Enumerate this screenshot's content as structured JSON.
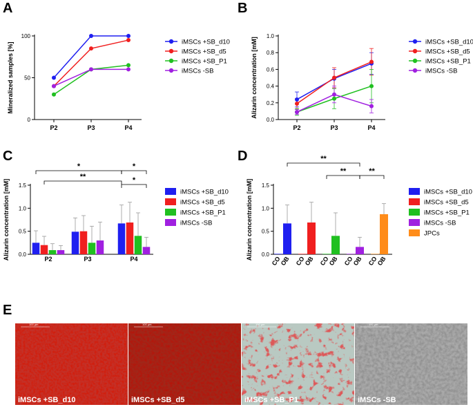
{
  "colors": {
    "blue": "#1f1ff0",
    "red": "#f01f1f",
    "green": "#20c020",
    "purple": "#a020e0",
    "orange": "#ff8c1a"
  },
  "panel_letters": {
    "a": "A",
    "b": "B",
    "c": "C",
    "d": "D",
    "e": "E"
  },
  "chart_data": [
    {
      "id": "A",
      "type": "line",
      "ylabel": "Mineralized samples [%]",
      "categories": [
        "P2",
        "P3",
        "P4"
      ],
      "ylim": [
        0,
        100
      ],
      "yticks": [
        "0",
        "50",
        "100"
      ],
      "series": [
        {
          "name": "iMSCs +SB_d10",
          "color": "blue",
          "values": [
            50,
            100,
            100
          ]
        },
        {
          "name": "iMSCs +SB_d5",
          "color": "red",
          "values": [
            40,
            85,
            95
          ]
        },
        {
          "name": "iMSCs +SB_P1",
          "color": "green",
          "values": [
            30,
            60,
            65
          ]
        },
        {
          "name": "iMSCs -SB",
          "color": "purple",
          "values": [
            40,
            60,
            60
          ]
        }
      ]
    },
    {
      "id": "B",
      "type": "line",
      "ylabel": "Alizarin concentration [mM]",
      "categories": [
        "P2",
        "P3",
        "P4"
      ],
      "ylim": [
        0,
        1.0
      ],
      "yticks": [
        "0.0",
        "0.2",
        "0.4",
        "0.6",
        "0.8",
        "1.0"
      ],
      "series": [
        {
          "name": "iMSCs +SB_d10",
          "color": "blue",
          "values": [
            0.24,
            0.49,
            0.67
          ],
          "err": [
            0.09,
            0.11,
            0.13
          ]
        },
        {
          "name": "iMSCs +SB_d5",
          "color": "red",
          "values": [
            0.19,
            0.5,
            0.69
          ],
          "err": [
            0.06,
            0.12,
            0.16
          ]
        },
        {
          "name": "iMSCs +SB_P1",
          "color": "green",
          "values": [
            0.09,
            0.25,
            0.4
          ],
          "err": [
            0.04,
            0.12,
            0.2
          ]
        },
        {
          "name": "iMSCs -SB",
          "color": "purple",
          "values": [
            0.09,
            0.3,
            0.16
          ],
          "err": [
            0.03,
            0.1,
            0.08
          ]
        }
      ]
    },
    {
      "id": "C",
      "type": "bar",
      "ylabel": "Alizarin concentration [mM]",
      "categories": [
        "P2",
        "P3",
        "P4"
      ],
      "ylim": [
        0,
        1.5
      ],
      "yticks": [
        "0.0",
        "0.5",
        "1.0",
        "1.5"
      ],
      "series": [
        {
          "name": "iMSCs +SB_d10",
          "color": "blue",
          "values": [
            0.25,
            0.49,
            0.67
          ],
          "err": [
            0.26,
            0.3,
            0.4
          ]
        },
        {
          "name": "iMSCs +SB_d5",
          "color": "red",
          "values": [
            0.2,
            0.5,
            0.69
          ],
          "err": [
            0.19,
            0.34,
            0.44
          ]
        },
        {
          "name": "iMSCs +SB_P1",
          "color": "green",
          "values": [
            0.09,
            0.25,
            0.4
          ],
          "err": [
            0.14,
            0.36,
            0.5
          ]
        },
        {
          "name": "iMSCs -SB",
          "color": "purple",
          "values": [
            0.09,
            0.3,
            0.16
          ],
          "err": [
            0.1,
            0.4,
            0.21
          ]
        }
      ],
      "significance": [
        {
          "from": "P2 iMSCs +SB_d10",
          "to": "P4 iMSCs +SB_d10",
          "label": "*"
        },
        {
          "from": "P2 iMSCs +SB_d5",
          "to": "P4 iMSCs +SB_d10",
          "label": "**"
        },
        {
          "from": "P4 iMSCs +SB_d10",
          "to": "P4 iMSCs -SB",
          "label": "*"
        },
        {
          "from": "P4 iMSCs +SB_d10",
          "to": "P4 iMSCs -SB",
          "label": "*"
        }
      ]
    },
    {
      "id": "D",
      "type": "bar",
      "ylabel": "Alizarin concentration [mM]",
      "categories": [
        "CO",
        "OB",
        "CO",
        "OB",
        "CO",
        "OB",
        "CO",
        "OB",
        "CO",
        "OB"
      ],
      "ylim": [
        0,
        1.5
      ],
      "yticks": [
        "0.0",
        "0.5",
        "1.0",
        "1.5"
      ],
      "groups": [
        {
          "name": "iMSCs +SB_d10",
          "color": "blue",
          "CO": 0.01,
          "OB": 0.67,
          "err": 0.4
        },
        {
          "name": "iMSCs +SB_d5",
          "color": "red",
          "CO": 0.01,
          "OB": 0.69,
          "err": 0.44
        },
        {
          "name": "iMSCs +SB_P1",
          "color": "green",
          "CO": 0.01,
          "OB": 0.4,
          "err": 0.5
        },
        {
          "name": "iMSCs -SB",
          "color": "purple",
          "CO": 0.01,
          "OB": 0.16,
          "err": 0.21
        },
        {
          "name": "JPCs",
          "color": "orange",
          "CO": 0.01,
          "OB": 0.87,
          "err": 0.23
        }
      ],
      "significance": [
        {
          "from": "iMSCs +SB_d10 OB",
          "to": "iMSCs -SB OB",
          "label": "**"
        },
        {
          "from": "iMSCs +SB_P1 CO",
          "to": "iMSCs -SB OB",
          "label": "**"
        },
        {
          "from": "iMSCs -SB OB",
          "to": "JPCs OB",
          "label": "**"
        }
      ]
    }
  ],
  "micrographs": [
    {
      "caption": "iMSCs +SB_d10",
      "scale": "100 µm"
    },
    {
      "caption": "iMSCs +SB_d5",
      "scale": "100 µm"
    },
    {
      "caption": "iMSCs +SB_P1",
      "scale": "100 µm"
    },
    {
      "caption": "iMSCs -SB",
      "scale": "100 µm"
    }
  ]
}
